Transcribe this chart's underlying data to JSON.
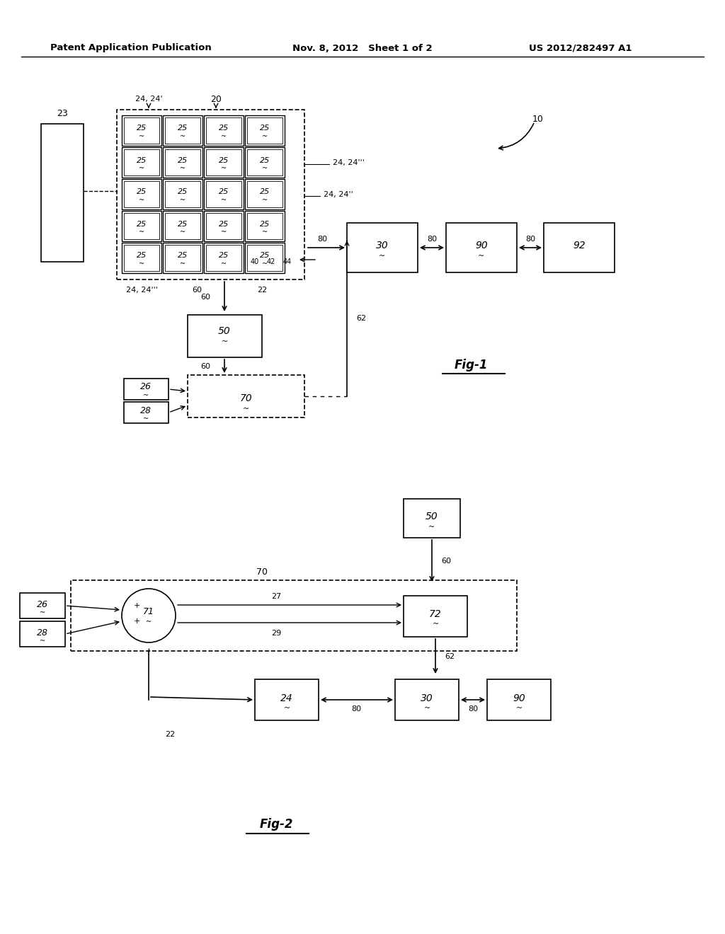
{
  "title_left": "Patent Application Publication",
  "title_mid": "Nov. 8, 2012   Sheet 1 of 2",
  "title_right": "US 2012/282497 A1",
  "bg_color": "#ffffff",
  "line_color": "#000000"
}
